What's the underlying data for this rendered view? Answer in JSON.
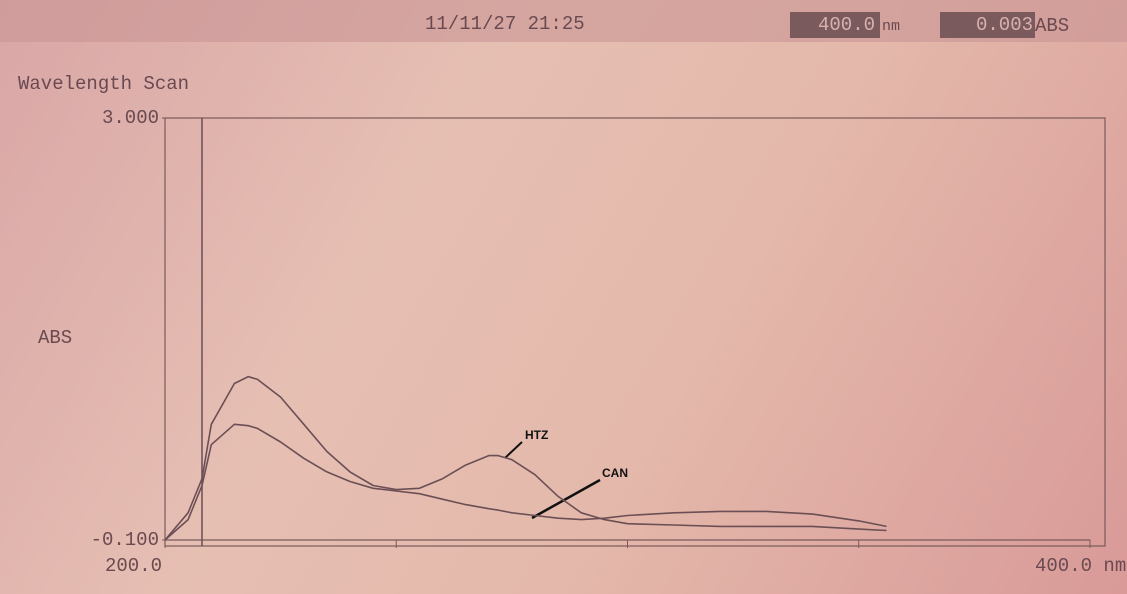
{
  "header": {
    "date_time": "11/11/27  21:25",
    "wavelength": "400.0",
    "wavelength_unit": "nm",
    "reading": "0.003",
    "reading_unit": "ABS"
  },
  "chart_data": {
    "type": "line",
    "title": "Wavelength Scan",
    "y_label": "ABS",
    "x": [
      200,
      205,
      208,
      210,
      215,
      218,
      220,
      225,
      230,
      235,
      240,
      245,
      250,
      255,
      260,
      265,
      270,
      272,
      275,
      280,
      285,
      290,
      295,
      300,
      310,
      320,
      330,
      340,
      350,
      356
    ],
    "series": [
      {
        "name": "HTZ",
        "color": "#6b4f55",
        "values": [
          -0.1,
          0.1,
          0.35,
          0.75,
          1.05,
          1.1,
          1.08,
          0.95,
          0.75,
          0.55,
          0.4,
          0.3,
          0.27,
          0.28,
          0.35,
          0.45,
          0.52,
          0.52,
          0.49,
          0.38,
          0.22,
          0.1,
          0.05,
          0.02,
          0.01,
          0.0,
          0.0,
          0.0,
          -0.02,
          -0.03
        ]
      },
      {
        "name": "CAN",
        "color": "#6b4f55",
        "values": [
          -0.1,
          0.05,
          0.3,
          0.6,
          0.75,
          0.74,
          0.72,
          0.62,
          0.5,
          0.4,
          0.33,
          0.28,
          0.26,
          0.24,
          0.2,
          0.16,
          0.13,
          0.12,
          0.1,
          0.08,
          0.06,
          0.05,
          0.06,
          0.08,
          0.1,
          0.11,
          0.11,
          0.09,
          0.04,
          0.0
        ]
      }
    ],
    "xlim": [
      200,
      400
    ],
    "ylim": [
      -0.1,
      3
    ],
    "xticks": [
      {
        "value": 200,
        "label": "200.0"
      },
      {
        "value": 400,
        "label": "400.0 nm"
      }
    ],
    "x_minor_ticks": [
      250,
      300,
      350
    ],
    "yticks": [
      {
        "value": -0.1,
        "label": "-0.100"
      },
      {
        "value": 3,
        "label": "3.000"
      }
    ],
    "cursor_x": 208
  }
}
